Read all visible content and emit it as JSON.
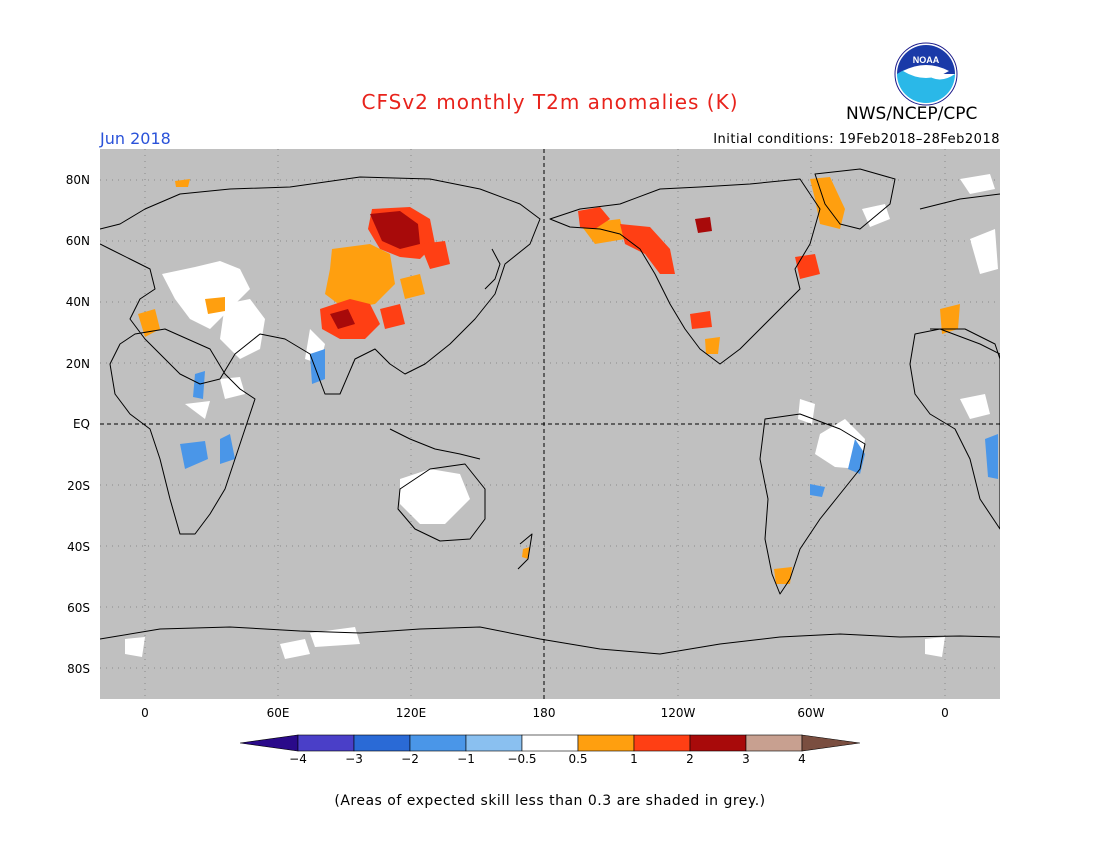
{
  "header": {
    "title": "CFSv2 monthly T2m anomalies (K)",
    "agency": "NWS/NCEP/CPC",
    "logo_text": "NOAA",
    "month": "Jun 2018",
    "initial_conditions": "Initial conditions: 19Feb2018–28Feb2018"
  },
  "map": {
    "background_color": "#c0c0c0",
    "lat_labels": [
      "80N",
      "60N",
      "40N",
      "20N",
      "EQ",
      "20S",
      "40S",
      "60S",
      "80S"
    ],
    "lon_labels": [
      "0",
      "60E",
      "120E",
      "180",
      "120W",
      "60W",
      "0"
    ],
    "note": "Areas of expected skill less than 0.3 are shaded in grey."
  },
  "colorbar": {
    "colors": [
      "#2a0a8a",
      "#4a3fc8",
      "#2a6ad6",
      "#4a96e8",
      "#8ac0f0",
      "#ffffff",
      "#ff9f0f",
      "#ff3f14",
      "#a80a0a",
      "#c8a090",
      "#7a4e40"
    ],
    "labels": [
      "−4",
      "−3",
      "−2",
      "−1",
      "−0.5",
      "0.5",
      "1",
      "2",
      "3",
      "4"
    ]
  },
  "footer": {
    "note": "(Areas of expected skill less than 0.3 are shaded in grey.)"
  }
}
